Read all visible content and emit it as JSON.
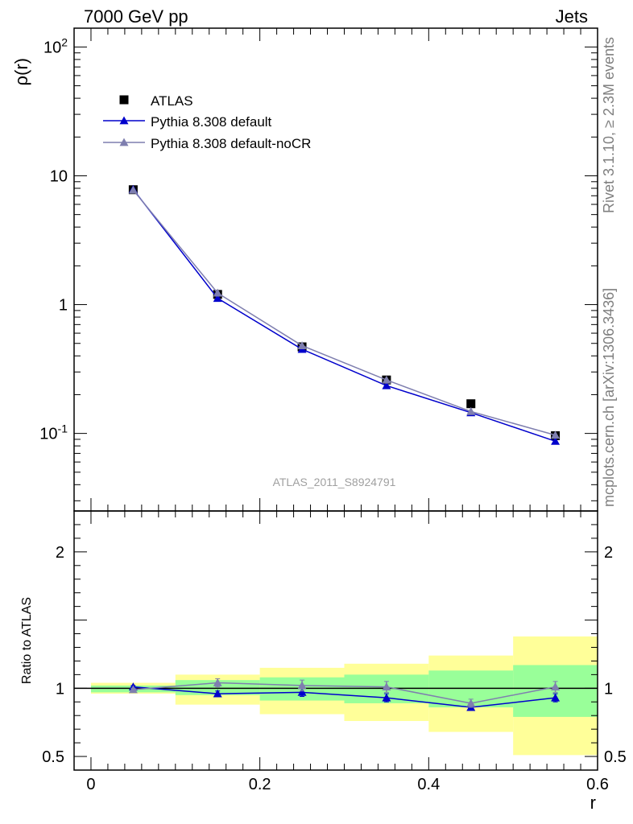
{
  "header": {
    "left": "7000 GeV pp",
    "right": "Jets"
  },
  "side": {
    "rivet": "Rivet 3.1.10, ≥ 2.3M events",
    "mcplots": "mcplots.cern.ch [arXiv:1306.3436]"
  },
  "analysis_id": "ATLAS_2011_S8924791",
  "colors": {
    "atlas": "#000000",
    "pythia_default": "#0000cc",
    "pythia_nocr": "#7f7faf",
    "band_inner": "#99ff99",
    "band_outer": "#ffff99"
  },
  "chart_data": [
    {
      "type": "line",
      "ylabel": "ρ(r)",
      "xlabel": "",
      "yscale": "log",
      "xlim": [
        -0.02,
        0.6
      ],
      "ylim": [
        0.025,
        140
      ],
      "x_ticks": [],
      "y_ticks": [
        {
          "value": 0.1,
          "label": "10^-1"
        },
        {
          "value": 1,
          "label": "1"
        },
        {
          "value": 10,
          "label": "10"
        },
        {
          "value": 100,
          "label": "10^2"
        }
      ],
      "legend_position": "top-left",
      "x": [
        0.05,
        0.15,
        0.25,
        0.35,
        0.45,
        0.55
      ],
      "bin_edges": [
        0.0,
        0.1,
        0.2,
        0.3,
        0.4,
        0.5,
        0.6
      ],
      "series": [
        {
          "name": "ATLAS",
          "marker": "square",
          "values": [
            7.8,
            1.2,
            0.47,
            0.26,
            0.17,
            0.096
          ]
        },
        {
          "name": "Pythia 8.308 default",
          "marker": "triangle",
          "values": [
            7.85,
            1.12,
            0.45,
            0.235,
            0.145,
            0.087
          ]
        },
        {
          "name": "Pythia 8.308 default-noCR",
          "marker": "triangle",
          "values": [
            7.75,
            1.23,
            0.48,
            0.26,
            0.148,
            0.097
          ]
        }
      ]
    },
    {
      "type": "line",
      "ylabel": "Ratio to ATLAS",
      "xlabel": "r",
      "xlim": [
        -0.02,
        0.6
      ],
      "ylim": [
        0.4,
        2.3
      ],
      "x_ticks": [
        {
          "value": 0,
          "label": "0"
        },
        {
          "value": 0.2,
          "label": "0.2"
        },
        {
          "value": 0.4,
          "label": "0.4"
        },
        {
          "value": 0.6,
          "label": "0.6"
        }
      ],
      "y_ticks": [
        {
          "value": 0.5,
          "label": "0.5"
        },
        {
          "value": 1,
          "label": "1"
        },
        {
          "value": 2,
          "label": "2"
        }
      ],
      "x": [
        0.05,
        0.15,
        0.25,
        0.35,
        0.45,
        0.55
      ],
      "bin_edges": [
        0.0,
        0.1,
        0.2,
        0.3,
        0.4,
        0.5,
        0.6
      ],
      "band_inner": [
        [
          0.97,
          1.02
        ],
        [
          0.95,
          1.06
        ],
        [
          0.91,
          1.08
        ],
        [
          0.89,
          1.1
        ],
        [
          0.86,
          1.13
        ],
        [
          0.79,
          1.17
        ]
      ],
      "band_outer": [
        [
          0.96,
          1.04
        ],
        [
          0.88,
          1.1
        ],
        [
          0.81,
          1.15
        ],
        [
          0.76,
          1.18
        ],
        [
          0.68,
          1.24
        ],
        [
          0.51,
          1.38
        ]
      ],
      "series": [
        {
          "name": "Pythia 8.308 default",
          "values": [
            1.01,
            0.96,
            0.97,
            0.93,
            0.86,
            0.93
          ],
          "errors": [
            0.01,
            0.02,
            0.03,
            0.03,
            0.02,
            0.03
          ]
        },
        {
          "name": "Pythia 8.308 default-noCR",
          "values": [
            0.99,
            1.04,
            1.02,
            1.01,
            0.89,
            1.01
          ],
          "errors": [
            0.01,
            0.03,
            0.04,
            0.04,
            0.03,
            0.04
          ]
        }
      ]
    }
  ]
}
